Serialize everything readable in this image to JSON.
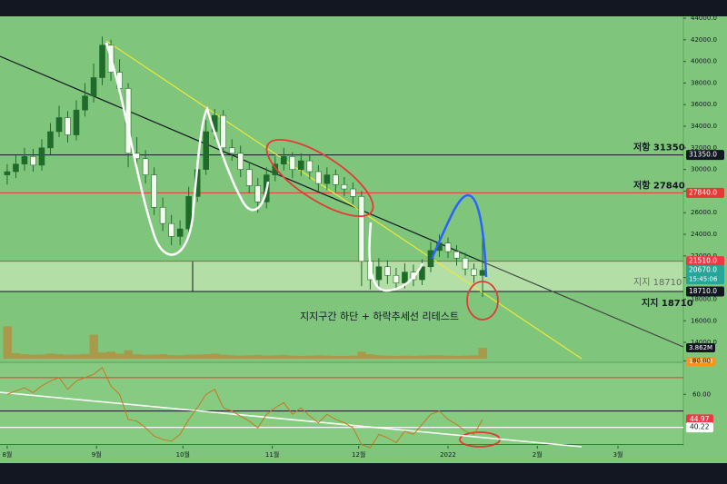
{
  "chart_data": {
    "type": "candlestick",
    "x": [
      0,
      3,
      6,
      9,
      12,
      15,
      18,
      21,
      24,
      27,
      30,
      33,
      36,
      39,
      42,
      45,
      48,
      51,
      54,
      57,
      60,
      63,
      66,
      69,
      72,
      75,
      78,
      81,
      84,
      87,
      90,
      93,
      96,
      99,
      102,
      105,
      108,
      111,
      114,
      117,
      120,
      123,
      126,
      129,
      132,
      135,
      138,
      141,
      144,
      147,
      150,
      153,
      156,
      159,
      162,
      165
    ],
    "open": [
      29500,
      29800,
      30500,
      31200,
      30400,
      32000,
      33500,
      34800,
      33200,
      35500,
      36800,
      38500,
      41500,
      39000,
      37500,
      31500,
      31000,
      29500,
      26500,
      25000,
      23800,
      24500,
      27500,
      30000,
      33500,
      35000,
      32000,
      31500,
      30000,
      28500,
      27000,
      29500,
      30500,
      31200,
      30000,
      30800,
      29800,
      28700,
      29500,
      28600,
      28200,
      27500,
      21500,
      19800,
      21000,
      20200,
      19500,
      20500,
      19800,
      21000,
      22500,
      23200,
      22400,
      21800,
      20800,
      20200
    ],
    "high": [
      30500,
      31300,
      32000,
      31900,
      32800,
      34300,
      35900,
      35400,
      36400,
      38000,
      39800,
      42300,
      42000,
      40200,
      38000,
      33000,
      31800,
      30200,
      27400,
      25800,
      25300,
      28400,
      30800,
      34600,
      35600,
      35500,
      32800,
      32200,
      30700,
      29200,
      30200,
      31200,
      32000,
      31600,
      31500,
      31300,
      30400,
      30200,
      30000,
      29300,
      28800,
      28000,
      22800,
      21800,
      21600,
      20900,
      21300,
      21200,
      21700,
      23300,
      24000,
      23700,
      23000,
      22300,
      21300,
      23600
    ],
    "low": [
      28600,
      29200,
      29900,
      29800,
      29900,
      31400,
      33000,
      32500,
      32700,
      34900,
      36200,
      37800,
      38200,
      36800,
      30200,
      29800,
      28700,
      25800,
      24300,
      23000,
      23000,
      24000,
      27000,
      29500,
      32800,
      31200,
      30800,
      29300,
      27800,
      26000,
      26400,
      28900,
      29900,
      29200,
      29400,
      29100,
      28000,
      28100,
      27900,
      27500,
      26800,
      19200,
      18900,
      19100,
      19400,
      18900,
      19000,
      19200,
      19300,
      20500,
      21900,
      21800,
      21100,
      20200,
      19500,
      18200
    ],
    "close": [
      29800,
      30500,
      31200,
      30400,
      32000,
      33500,
      34800,
      33200,
      35500,
      36800,
      38500,
      41500,
      39000,
      37500,
      31500,
      31000,
      29500,
      26500,
      25000,
      23800,
      24500,
      27500,
      30000,
      33500,
      35000,
      32000,
      31500,
      30000,
      28500,
      27000,
      29500,
      30500,
      31200,
      30000,
      30800,
      29800,
      28700,
      29500,
      28600,
      28200,
      27500,
      21500,
      19800,
      21000,
      20200,
      19500,
      20500,
      19800,
      21000,
      22500,
      23200,
      22400,
      21800,
      20800,
      20200,
      20670
    ],
    "volume": [
      11.5,
      2.0,
      1.6,
      1.4,
      1.5,
      1.8,
      1.6,
      1.4,
      1.5,
      1.7,
      8.5,
      2.2,
      2.5,
      1.8,
      3.0,
      1.6,
      1.4,
      1.5,
      1.6,
      1.3,
      1.2,
      1.4,
      1.5,
      1.6,
      1.8,
      1.4,
      1.2,
      1.1,
      1.2,
      1.3,
      1.1,
      1.2,
      1.3,
      1.1,
      1.0,
      1.1,
      1.2,
      1.1,
      1.0,
      1.0,
      1.1,
      2.5,
      1.6,
      1.2,
      1.1,
      1.0,
      1.1,
      1.0,
      1.1,
      1.2,
      1.2,
      1.1,
      1.0,
      1.1,
      1.2,
      3.862
    ],
    "up_color": "#1f6b2a",
    "down_color": "#f4fbef",
    "volume_color": "#a89a4a",
    "volume_lim": [
      0,
      12.9
    ],
    "volume_last": {
      "value": 3.862,
      "label": "3.862M"
    },
    "volume_ma": {
      "value": 1.262,
      "label": "1.262M"
    },
    "xlim": [
      -2.5,
      234.7
    ],
    "xticks": [
      {
        "value": 0,
        "label": "8월"
      },
      {
        "value": 31,
        "label": "9월"
      },
      {
        "value": 61,
        "label": "10월"
      },
      {
        "value": 92,
        "label": "11월"
      },
      {
        "value": 122,
        "label": "12월"
      },
      {
        "value": 153,
        "label": "2022"
      },
      {
        "value": 184,
        "label": "2월"
      },
      {
        "value": 212,
        "label": "3월"
      }
    ],
    "ylim": [
      12240,
      44170
    ],
    "yticks": [
      {
        "value": 14000,
        "label": "14000.0"
      },
      {
        "value": 16000,
        "label": "16000.0"
      },
      {
        "value": 18000,
        "label": "18000.0"
      },
      {
        "value": 20000,
        "label": "20000.0"
      },
      {
        "value": 22000,
        "label": "22000.0"
      },
      {
        "value": 24000,
        "label": "24000.0"
      },
      {
        "value": 26000,
        "label": "26000.0"
      },
      {
        "value": 28000,
        "label": "28000.0"
      },
      {
        "value": 30000,
        "label": "30000.0"
      },
      {
        "value": 32000,
        "label": "32000.0"
      },
      {
        "value": 34000,
        "label": "34000.0"
      },
      {
        "value": 36000,
        "label": "36000.0"
      },
      {
        "value": 38000,
        "label": "38000.0"
      },
      {
        "value": 40000,
        "label": "40000.0"
      },
      {
        "value": 42000,
        "label": "42000.0"
      },
      {
        "value": 44000,
        "label": "44000.0"
      }
    ],
    "levels": [
      {
        "value": 31350,
        "label": "31350.0",
        "color": "#131722",
        "text": "저항 31350"
      },
      {
        "value": 27840,
        "label": "27840.0",
        "color": "#e53935",
        "text": "저항 27840"
      },
      {
        "value": 21510,
        "label": "21510.0",
        "color": "#f23645"
      },
      {
        "value": 18710,
        "label": "18710.0",
        "color": "#131722",
        "text": "지지 18710"
      }
    ],
    "last_price": {
      "value": 20670,
      "label": "20670.0",
      "countdown": "15:45:06",
      "color": "#26a69a"
    },
    "zone_label": "지지 18710",
    "annotation": "지지구간 하단 + 하락추세선 리테스트",
    "rsi": {
      "values": [
        60,
        62,
        64,
        61,
        65,
        68,
        70,
        63,
        68,
        70,
        72,
        76,
        65,
        60,
        45,
        44,
        40,
        35,
        33,
        32,
        36,
        45,
        52,
        60,
        63,
        52,
        50,
        47,
        44,
        40,
        48,
        52,
        55,
        48,
        52,
        47,
        43,
        48,
        45,
        43,
        40,
        30,
        28,
        36,
        34,
        31,
        38,
        36,
        42,
        48,
        50,
        45,
        42,
        38,
        36,
        44.97
      ],
      "color": "#c8781e",
      "ylim": [
        29.7,
        80.8
      ],
      "yticks": [
        {
          "value": 80,
          "label": "80.00"
        },
        {
          "value": 60,
          "label": "60.00"
        }
      ],
      "levels": [
        {
          "value": 70,
          "color": "#e53935"
        },
        {
          "value": 50,
          "color": "#131722"
        },
        {
          "value": 30,
          "color": "#2962ff"
        }
      ],
      "last": {
        "value": 44.97,
        "label": "44.97",
        "color": "#f23645"
      },
      "signal": {
        "value": 40.22,
        "label": "40.22",
        "color": "#ffffff"
      }
    }
  }
}
